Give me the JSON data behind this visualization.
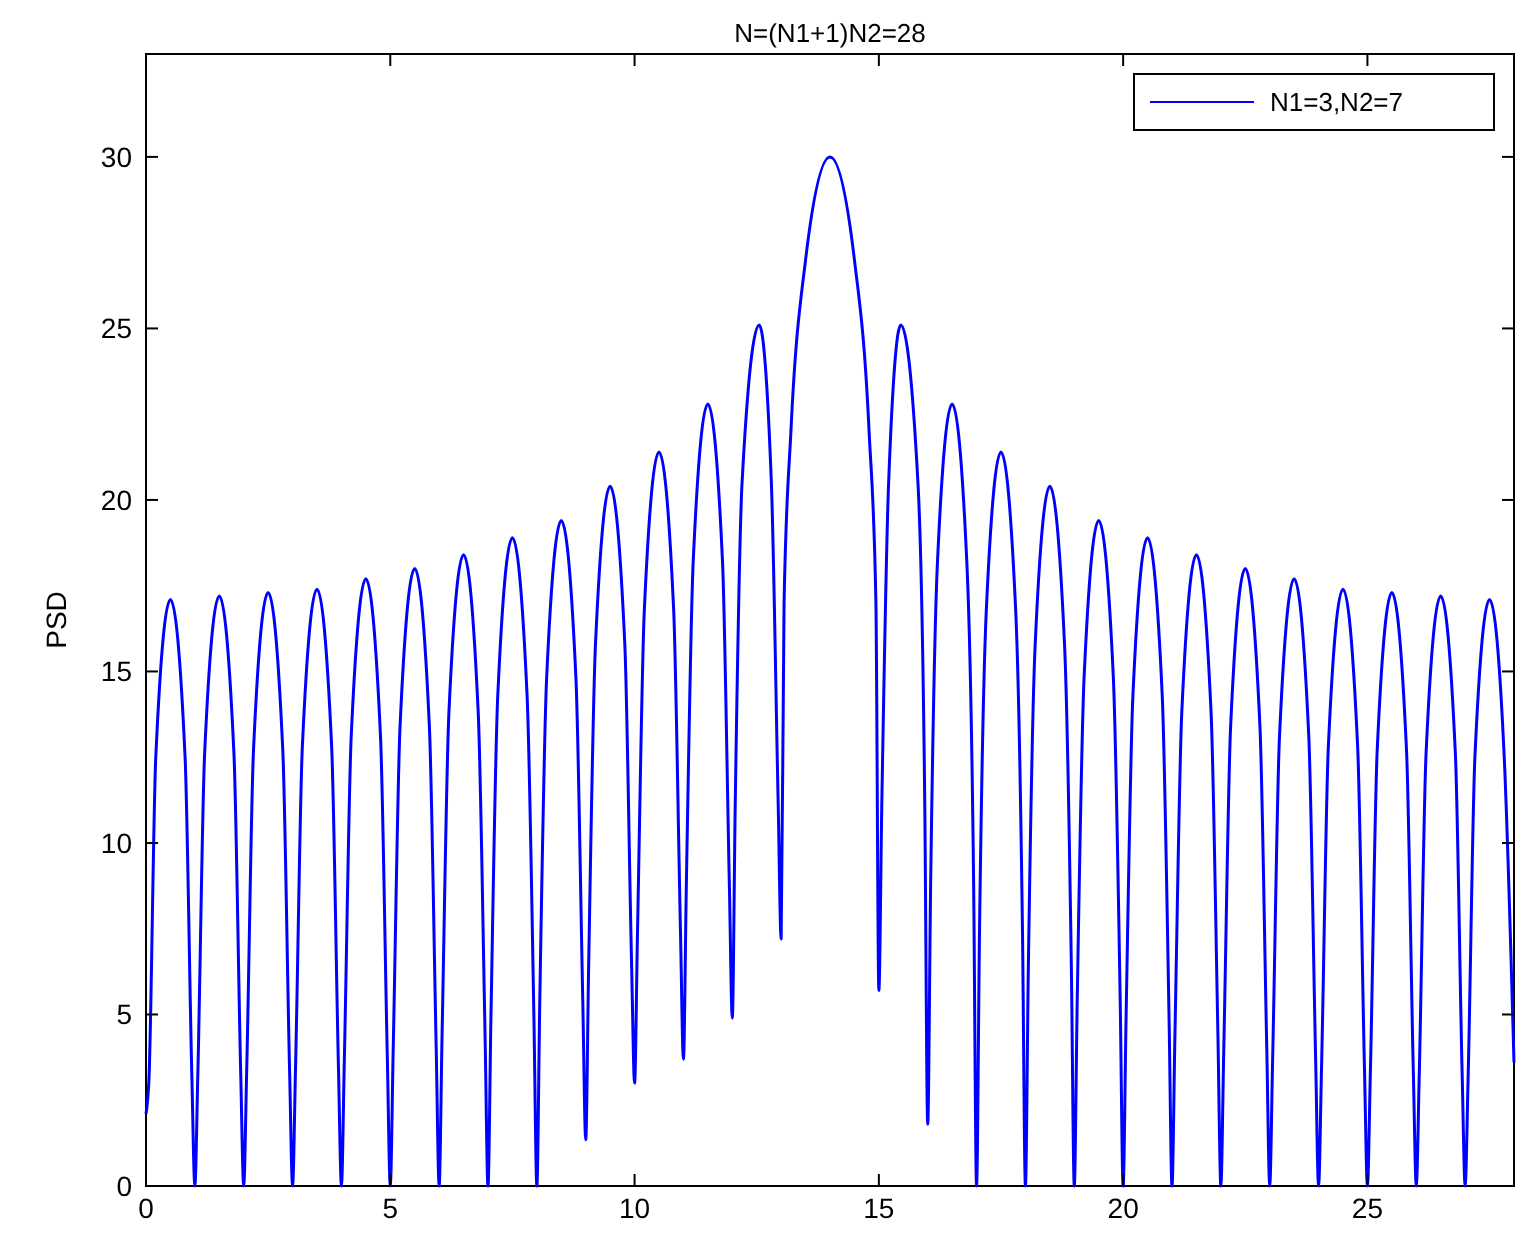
{
  "chart_data": {
    "type": "line",
    "title": "N=(N1+1)N2=28",
    "ylabel": "PSD",
    "xlim": [
      0,
      28
    ],
    "ylim": [
      0,
      33
    ],
    "xticks": [
      0,
      5,
      10,
      15,
      20,
      25
    ],
    "yticks": [
      0,
      5,
      10,
      15,
      20,
      25,
      30
    ],
    "grid": false,
    "legend": "top right",
    "marker": "none",
    "line_style": "solid",
    "series": [
      {
        "name": "N1=3,N2=7",
        "color": "#0000ff",
        "x": [
          0,
          0.06,
          0.2,
          0.5,
          0.8,
          0.94,
          1,
          1.06,
          1.2,
          1.5,
          1.8,
          1.94,
          2,
          2.06,
          2.2,
          2.5,
          2.8,
          2.94,
          3,
          3.06,
          3.2,
          3.5,
          3.8,
          3.94,
          4,
          4.06,
          4.2,
          4.5,
          4.8,
          4.94,
          5,
          5.06,
          5.2,
          5.5,
          5.8,
          5.94,
          6,
          6.06,
          6.2,
          6.5,
          6.8,
          6.94,
          7,
          7.06,
          7.2,
          7.5,
          7.8,
          7.94,
          8,
          8.06,
          8.2,
          8.5,
          8.8,
          8.94,
          9,
          9.06,
          9.2,
          9.5,
          9.8,
          9.94,
          10,
          10.06,
          10.2,
          10.5,
          10.8,
          10.94,
          11,
          11.06,
          11.2,
          11.5,
          11.8,
          11.94,
          12,
          12.06,
          12.2,
          12.55,
          12.8,
          12.94,
          13,
          13.06,
          13.2,
          13.5,
          14,
          14.5,
          14.8,
          14.94,
          15,
          15.06,
          15.2,
          15.45,
          15.8,
          15.94,
          16,
          16.06,
          16.2,
          16.5,
          16.8,
          16.94,
          17,
          17.06,
          17.2,
          17.5,
          17.8,
          17.94,
          18,
          18.06,
          18.2,
          18.5,
          18.8,
          18.94,
          19,
          19.06,
          19.2,
          19.5,
          19.8,
          19.94,
          20,
          20.06,
          20.2,
          20.5,
          20.8,
          20.94,
          21,
          21.06,
          21.2,
          21.5,
          21.8,
          21.94,
          22,
          22.06,
          22.2,
          22.5,
          22.8,
          22.94,
          23,
          23.06,
          23.2,
          23.5,
          23.8,
          23.94,
          24,
          24.06,
          24.2,
          24.5,
          24.8,
          24.94,
          25,
          25.06,
          25.2,
          25.5,
          25.8,
          25.94,
          26,
          26.06,
          26.2,
          26.5,
          26.8,
          26.94,
          27,
          27.06,
          27.2,
          27.5,
          27.8,
          28
        ],
        "values": [
          2.1,
          3.1,
          12.5,
          17.1,
          12.5,
          3.1,
          0,
          3.2,
          12.6,
          17.2,
          12.6,
          3.2,
          0,
          3.3,
          12.7,
          17.3,
          12.7,
          3.3,
          0,
          3.4,
          12.8,
          17.4,
          12.8,
          3.4,
          0,
          3.7,
          13.1,
          17.7,
          13.1,
          3.7,
          0,
          4.0,
          13.4,
          18.0,
          13.4,
          4.0,
          0,
          4.4,
          13.8,
          18.4,
          13.8,
          4.4,
          0,
          4.9,
          14.3,
          18.9,
          14.3,
          4.9,
          0,
          5.4,
          14.8,
          19.4,
          14.8,
          5.4,
          1.35,
          6.4,
          15.8,
          20.4,
          15.8,
          6.4,
          3.0,
          7.4,
          16.8,
          21.4,
          16.8,
          7.4,
          3.7,
          8.8,
          18.2,
          22.8,
          18.2,
          8.8,
          4.9,
          11.1,
          20.5,
          25.1,
          20.5,
          11.1,
          7.2,
          17,
          22,
          27,
          30,
          27,
          22,
          17,
          5.7,
          11.1,
          20.5,
          25.1,
          20.5,
          11.1,
          1.8,
          8.8,
          18.2,
          22.8,
          18.2,
          8.8,
          0,
          7.4,
          16.8,
          21.4,
          16.8,
          7.4,
          0,
          6.4,
          15.8,
          20.4,
          15.8,
          6.4,
          0,
          5.4,
          14.8,
          19.4,
          14.8,
          5.4,
          0,
          4.9,
          14.3,
          18.9,
          14.3,
          4.9,
          0,
          4.4,
          13.8,
          18.4,
          13.8,
          4.4,
          0,
          4.0,
          13.4,
          18.0,
          13.4,
          4.0,
          0,
          3.7,
          13.1,
          17.7,
          13.1,
          3.7,
          0,
          3.4,
          12.8,
          17.4,
          12.8,
          3.4,
          0,
          3.3,
          12.7,
          17.3,
          12.7,
          3.3,
          0,
          3.2,
          12.6,
          17.2,
          12.6,
          3.2,
          0,
          3.1,
          12.5,
          17.1,
          12.5,
          3.6
        ]
      }
    ]
  }
}
